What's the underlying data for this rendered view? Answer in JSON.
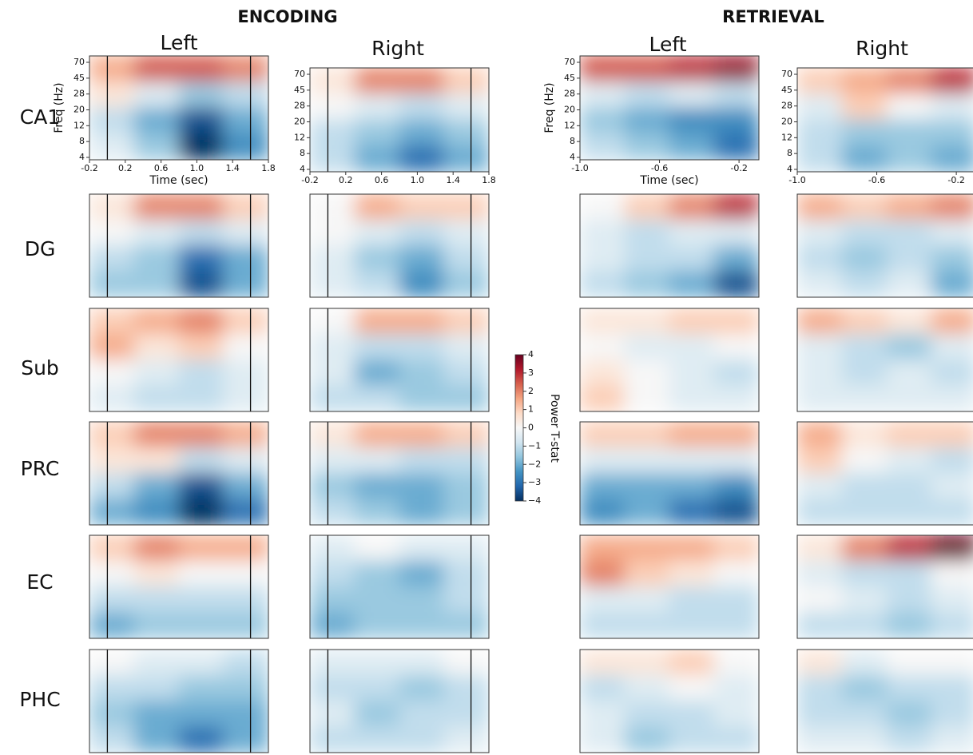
{
  "chart_data": {
    "type": "heatmap",
    "regions": [
      "CA1",
      "DG",
      "Sub",
      "PRC",
      "EC",
      "PHC"
    ],
    "xlabel": "Time (sec)",
    "ylabel": "Freq (Hz)",
    "yticks": [
      4,
      8,
      12,
      20,
      28,
      45,
      70
    ],
    "colorbar": {
      "label": "Power T-stat",
      "colormap": "RdBu_r",
      "clim": [
        -4,
        4
      ],
      "ticks": [
        {
          "value": -4,
          "label": "−4"
        },
        {
          "value": -3,
          "label": "−3"
        },
        {
          "value": -2,
          "label": "−2"
        },
        {
          "value": -1,
          "label": "−1"
        },
        0,
        1,
        2,
        3,
        4
      ]
    },
    "conditions": [
      {
        "title": "ENCODING",
        "hemispheres": [
          "Left",
          "Right"
        ],
        "xlim": [
          -0.2,
          1.8
        ],
        "xticks": [
          -0.2,
          0.2,
          0.6,
          {
            "value": 1,
            "label": "1.0"
          },
          1.4,
          1.8
        ],
        "vlines": [
          0,
          1.6
        ],
        "z": [
          [
            [
              [
                1.5,
                2.5,
                2.5,
                2
              ],
              [
                0.5,
                -0.5,
                -1.5,
                -1
              ],
              [
                -1,
                -2,
                -3.5,
                -2
              ],
              [
                -0.5,
                -1.5,
                -4,
                -2.5
              ]
            ],
            [
              [
                0.5,
                2,
                2,
                1
              ],
              [
                0,
                -0.5,
                -1,
                -0.5
              ],
              [
                -1,
                -1.5,
                -3,
                -2
              ],
              [
                -1.5,
                -1.5,
                -3.5,
                -2
              ]
            ],
            [
              [
                1,
                1.5,
                2,
                1
              ],
              [
                1.5,
                0.5,
                1,
                0
              ],
              [
                0,
                -0.5,
                -1,
                -0.5
              ],
              [
                -0.5,
                -1,
                -1,
                -0.5
              ]
            ],
            [
              [
                1,
                2,
                2,
                1.5
              ],
              [
                0.5,
                0.5,
                -1,
                -0.5
              ],
              [
                -1,
                -2,
                -3.5,
                -2
              ],
              [
                -2,
                -2.5,
                -4,
                -3
              ]
            ],
            [
              [
                1,
                2,
                1.5,
                1.5
              ],
              [
                0,
                0.5,
                0,
                0
              ],
              [
                -1,
                -1,
                -1,
                -1
              ],
              [
                -2,
                -1.5,
                -1.5,
                -1.5
              ]
            ],
            [
              [
                0,
                -0.5,
                -0.5,
                -1
              ],
              [
                -1,
                -1,
                -1.5,
                -1.5
              ],
              [
                -1.5,
                -2,
                -2,
                -2
              ],
              [
                -1,
                -2,
                -3,
                -2
              ]
            ]
          ],
          [
            [
              [
                0.5,
                2,
                2,
                1
              ],
              [
                0,
                -0.5,
                -1,
                -0.5
              ],
              [
                -1,
                -1.5,
                -2,
                -1.5
              ],
              [
                -1,
                -2,
                -3,
                -2
              ]
            ],
            [
              [
                0,
                1.5,
                1,
                1
              ],
              [
                0,
                -0.5,
                -1,
                -0.5
              ],
              [
                -0.5,
                -1.5,
                -2,
                -1
              ],
              [
                -0.5,
                -1,
                -2.5,
                -1.5
              ]
            ],
            [
              [
                0,
                1.5,
                1.5,
                1
              ],
              [
                -0.5,
                -1,
                -1,
                -0.5
              ],
              [
                -0.5,
                -2,
                -1.5,
                -1
              ],
              [
                -1,
                -1,
                -1.5,
                -1.5
              ]
            ],
            [
              [
                0.5,
                1.5,
                1.5,
                1
              ],
              [
                -0.5,
                -0.5,
                -1,
                -1
              ],
              [
                -1.5,
                -2,
                -2,
                -1.5
              ],
              [
                -1,
                -1.5,
                -2,
                -1.5
              ]
            ],
            [
              [
                -0.5,
                0,
                -0.5,
                -0.5
              ],
              [
                -1,
                -1.5,
                -2,
                -1
              ],
              [
                -1.5,
                -1.5,
                -1.5,
                -1
              ],
              [
                -2,
                -1.5,
                -1.5,
                -1.5
              ]
            ],
            [
              [
                -0.5,
                -0.5,
                -0.5,
                0
              ],
              [
                -1,
                -1,
                -1.5,
                -1
              ],
              [
                -0.5,
                -1.5,
                -1,
                -1
              ],
              [
                -1,
                -1,
                -1,
                -0.5
              ]
            ]
          ]
        ]
      },
      {
        "title": "RETRIEVAL",
        "hemispheres": [
          "Left",
          "Right"
        ],
        "xlim": [
          -1,
          -0.1
        ],
        "xticks": [
          {
            "value": -1,
            "label": "-1.0"
          },
          -0.6,
          -0.2
        ],
        "z": [
          [
            [
              [
                2.5,
                2.5,
                3,
                3.5
              ],
              [
                -0.5,
                -1,
                -0.5,
                -1
              ],
              [
                -1.5,
                -2,
                -2.5,
                -2.5
              ],
              [
                -1,
                -1.5,
                -2,
                -3
              ]
            ],
            [
              [
                0,
                1,
                2,
                3
              ],
              [
                -0.5,
                -1,
                -0.5,
                -0.5
              ],
              [
                -0.5,
                -1,
                -1,
                -2
              ],
              [
                -1,
                -1.5,
                -2,
                -3.5
              ]
            ],
            [
              [
                0.5,
                0.5,
                1,
                1
              ],
              [
                0,
                -0.5,
                -0.5,
                0
              ],
              [
                0.5,
                0,
                -0.5,
                -1
              ],
              [
                1,
                0,
                -0.5,
                -0.5
              ]
            ],
            [
              [
                1,
                1,
                1.5,
                1.5
              ],
              [
                -0.5,
                -0.5,
                -0.5,
                -0.5
              ],
              [
                -2,
                -2,
                -2,
                -2.5
              ],
              [
                -2.5,
                -2,
                -3,
                -3.5
              ]
            ],
            [
              [
                1.5,
                1.5,
                1.5,
                1
              ],
              [
                2,
                1,
                0.5,
                0
              ],
              [
                -0.5,
                -0.5,
                -1,
                -1
              ],
              [
                -1,
                -1,
                -1,
                -1
              ]
            ],
            [
              [
                0.5,
                0.5,
                1,
                0
              ],
              [
                -1,
                -0.5,
                0,
                -0.5
              ],
              [
                -0.5,
                -1,
                -1,
                -0.5
              ],
              [
                -0.5,
                -1.5,
                -1,
                -1
              ]
            ]
          ],
          [
            [
              [
                1,
                1.5,
                2,
                3
              ],
              [
                -0.5,
                1,
                0,
                -0.5
              ],
              [
                -1,
                -1.5,
                -1.5,
                -1.5
              ],
              [
                -1,
                -2,
                -1.5,
                -2
              ]
            ],
            [
              [
                1.5,
                1,
                1.5,
                2
              ],
              [
                -0.5,
                -1,
                -1,
                -0.5
              ],
              [
                -1,
                -1.5,
                -1,
                -1.5
              ],
              [
                -0.5,
                -1,
                -0.5,
                -2
              ]
            ],
            [
              [
                1.5,
                1,
                0.5,
                1.5
              ],
              [
                -0.5,
                -1,
                -1.5,
                -0.5
              ],
              [
                -0.5,
                -1,
                -0.5,
                -1
              ],
              [
                -0.5,
                -0.5,
                -0.5,
                -0.5
              ]
            ],
            [
              [
                1.5,
                0.5,
                1,
                1
              ],
              [
                1,
                0,
                -0.5,
                -1
              ],
              [
                -0.5,
                -1,
                -1,
                -0.5
              ],
              [
                -1,
                -1,
                -1,
                -1
              ]
            ],
            [
              [
                0.5,
                2,
                3,
                4
              ],
              [
                -0.5,
                -1,
                -1,
                0
              ],
              [
                0,
                -0.5,
                -1,
                -0.5
              ],
              [
                -1,
                -1,
                -1.5,
                -1
              ]
            ],
            [
              [
                0.5,
                -0.5,
                0,
                0
              ],
              [
                -1,
                -1.5,
                -1,
                -1
              ],
              [
                -1,
                -1,
                -1.5,
                -1
              ],
              [
                -0.5,
                -0.5,
                -1,
                -0.5
              ]
            ]
          ]
        ]
      }
    ]
  }
}
